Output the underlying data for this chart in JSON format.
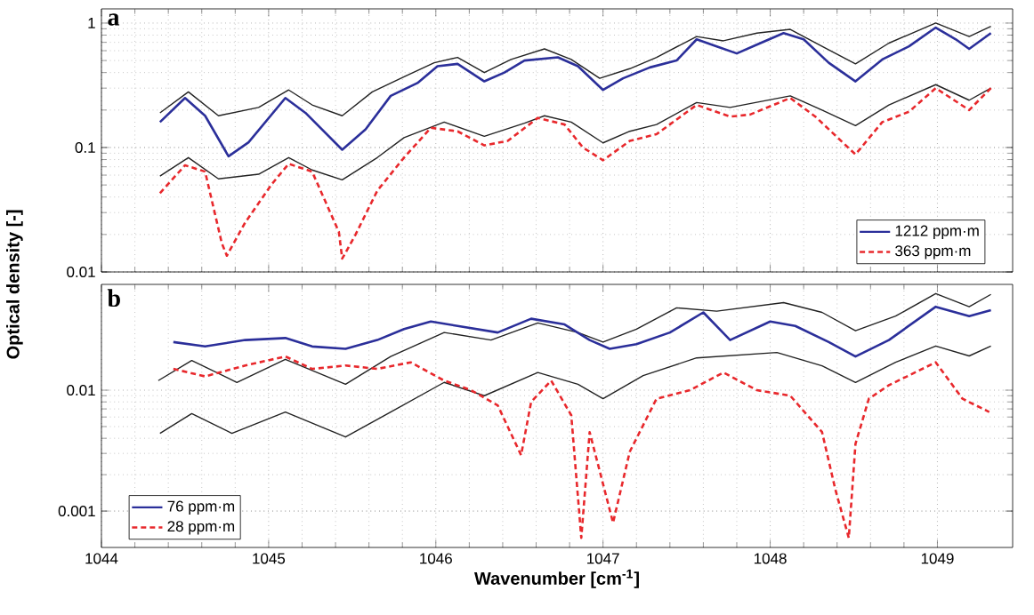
{
  "chart_data": [
    {
      "type": "line",
      "ylabel": "Optical density [-]",
      "annotations": [
        "a"
      ],
      "log": "y",
      "grid": true,
      "legend": "bottom right",
      "tick_labels": "y",
      "xlim": [
        1044,
        1049.45
      ],
      "xticks": [
        1044,
        1045,
        1046,
        1047,
        1048,
        1049
      ],
      "ylim": [
        0.01,
        1.3
      ],
      "yticks": [
        0.01,
        0.1,
        1
      ],
      "series": [
        {
          "color": "#222222",
          "x": [
            1044.35,
            1044.52,
            1044.7,
            1044.94,
            1045.12,
            1045.26,
            1045.44,
            1045.62,
            1045.81,
            1045.99,
            1046.13,
            1046.29,
            1046.45,
            1046.65,
            1046.81,
            1046.98,
            1047.16,
            1047.32,
            1047.56,
            1047.72,
            1047.92,
            1048.12,
            1048.31,
            1048.51,
            1048.71,
            1048.99,
            1049.19,
            1049.32
          ],
          "values": [
            0.19,
            0.28,
            0.18,
            0.21,
            0.29,
            0.22,
            0.18,
            0.28,
            0.37,
            0.48,
            0.53,
            0.4,
            0.51,
            0.62,
            0.51,
            0.36,
            0.43,
            0.53,
            0.78,
            0.72,
            0.83,
            0.89,
            0.65,
            0.47,
            0.69,
            1.0,
            0.78,
            0.94
          ]
        },
        {
          "color": "#222222",
          "x": [
            1044.35,
            1044.52,
            1044.7,
            1044.94,
            1045.12,
            1045.26,
            1045.44,
            1045.65,
            1045.81,
            1046.05,
            1046.29,
            1046.53,
            1046.65,
            1046.81,
            1047.0,
            1047.16,
            1047.32,
            1047.56,
            1047.76,
            1048.12,
            1048.31,
            1048.51,
            1048.71,
            1048.99,
            1049.19,
            1049.32
          ],
          "values": [
            0.059,
            0.083,
            0.056,
            0.061,
            0.083,
            0.066,
            0.055,
            0.083,
            0.12,
            0.16,
            0.123,
            0.157,
            0.18,
            0.16,
            0.109,
            0.135,
            0.153,
            0.23,
            0.21,
            0.26,
            0.2,
            0.15,
            0.22,
            0.32,
            0.24,
            0.3
          ]
        },
        {
          "name": "1212 ppm·m",
          "color": "#2b2f9a",
          "line_style": "solid",
          "x": [
            1044.35,
            1044.5,
            1044.62,
            1044.76,
            1044.88,
            1045.1,
            1045.22,
            1045.44,
            1045.58,
            1045.73,
            1045.89,
            1046.01,
            1046.13,
            1046.29,
            1046.41,
            1046.53,
            1046.73,
            1046.85,
            1047.0,
            1047.12,
            1047.28,
            1047.44,
            1047.56,
            1047.68,
            1047.8,
            1047.92,
            1048.08,
            1048.2,
            1048.35,
            1048.51,
            1048.67,
            1048.83,
            1048.99,
            1049.11,
            1049.19,
            1049.32
          ],
          "values": [
            0.16,
            0.25,
            0.18,
            0.085,
            0.11,
            0.25,
            0.19,
            0.096,
            0.14,
            0.26,
            0.33,
            0.45,
            0.47,
            0.34,
            0.4,
            0.5,
            0.53,
            0.45,
            0.29,
            0.36,
            0.44,
            0.5,
            0.74,
            0.65,
            0.57,
            0.67,
            0.83,
            0.74,
            0.48,
            0.34,
            0.51,
            0.65,
            0.92,
            0.74,
            0.62,
            0.83
          ]
        },
        {
          "name": "363 ppm·m",
          "color": "#e8282c",
          "line_style": "dashed",
          "x": [
            1044.35,
            1044.5,
            1044.62,
            1044.72,
            1044.75,
            1044.86,
            1045.02,
            1045.12,
            1045.26,
            1045.42,
            1045.44,
            1045.52,
            1045.65,
            1045.81,
            1045.97,
            1046.13,
            1046.29,
            1046.43,
            1046.61,
            1046.77,
            1046.88,
            1047.0,
            1047.16,
            1047.32,
            1047.56,
            1047.76,
            1047.88,
            1048.12,
            1048.27,
            1048.51,
            1048.67,
            1048.83,
            1048.99,
            1049.19,
            1049.32
          ],
          "values": [
            0.043,
            0.072,
            0.064,
            0.017,
            0.0135,
            0.025,
            0.051,
            0.074,
            0.064,
            0.021,
            0.0128,
            0.02,
            0.045,
            0.083,
            0.144,
            0.135,
            0.104,
            0.113,
            0.173,
            0.153,
            0.1,
            0.079,
            0.113,
            0.128,
            0.22,
            0.177,
            0.184,
            0.25,
            0.177,
            0.088,
            0.16,
            0.194,
            0.3,
            0.2,
            0.3
          ]
        }
      ]
    },
    {
      "type": "line",
      "xlabel": "Wavenumber [cm$^{-1}$]",
      "annotations": [
        "b"
      ],
      "log": "y",
      "grid": true,
      "legend": "bottom left",
      "xlim": [
        1044,
        1049.45
      ],
      "xticks": [
        1044,
        1045,
        1046,
        1047,
        1048,
        1049
      ],
      "ylim": [
        0.0005,
        0.075
      ],
      "yticks": [
        0.001,
        0.01
      ],
      "series": [
        {
          "color": "#222222",
          "x": [
            1044.34,
            1044.54,
            1044.81,
            1045.1,
            1045.46,
            1045.73,
            1046.05,
            1046.33,
            1046.61,
            1046.85,
            1047.0,
            1047.2,
            1047.44,
            1047.68,
            1048.08,
            1048.31,
            1048.51,
            1048.75,
            1048.99,
            1049.19,
            1049.32
          ],
          "values": [
            0.012,
            0.0176,
            0.0116,
            0.018,
            0.0112,
            0.019,
            0.03,
            0.026,
            0.036,
            0.03,
            0.025,
            0.032,
            0.048,
            0.045,
            0.053,
            0.044,
            0.031,
            0.041,
            0.063,
            0.049,
            0.062
          ]
        },
        {
          "color": "#222222",
          "x": [
            1044.35,
            1044.54,
            1044.78,
            1045.1,
            1045.46,
            1045.73,
            1046.05,
            1046.29,
            1046.61,
            1046.85,
            1047.0,
            1047.24,
            1047.56,
            1048.04,
            1048.31,
            1048.51,
            1048.75,
            1048.99,
            1049.19,
            1049.32
          ],
          "values": [
            0.0044,
            0.0064,
            0.0044,
            0.0066,
            0.0041,
            0.0066,
            0.0116,
            0.009,
            0.014,
            0.0112,
            0.0085,
            0.0132,
            0.0185,
            0.0205,
            0.0159,
            0.0116,
            0.017,
            0.0232,
            0.0192,
            0.0232
          ]
        },
        {
          "name": "76 ppm·m",
          "color": "#2b2f9a",
          "line_style": "solid",
          "x": [
            1044.43,
            1044.62,
            1044.86,
            1045.1,
            1045.26,
            1045.46,
            1045.65,
            1045.81,
            1045.97,
            1046.13,
            1046.37,
            1046.57,
            1046.77,
            1046.92,
            1047.04,
            1047.2,
            1047.4,
            1047.6,
            1047.76,
            1048.0,
            1048.15,
            1048.35,
            1048.51,
            1048.71,
            1048.99,
            1049.19,
            1049.32
          ],
          "values": [
            0.025,
            0.023,
            0.026,
            0.027,
            0.023,
            0.022,
            0.026,
            0.032,
            0.037,
            0.034,
            0.03,
            0.039,
            0.035,
            0.026,
            0.022,
            0.024,
            0.03,
            0.044,
            0.026,
            0.037,
            0.034,
            0.025,
            0.019,
            0.026,
            0.049,
            0.041,
            0.046
          ]
        },
        {
          "name": "28 ppm·m",
          "color": "#e8282c",
          "line_style": "dashed",
          "x": [
            1044.43,
            1044.62,
            1044.86,
            1045.1,
            1045.26,
            1045.46,
            1045.65,
            1045.85,
            1046.05,
            1046.21,
            1046.37,
            1046.51,
            1046.57,
            1046.69,
            1046.81,
            1046.87,
            1046.92,
            1047.06,
            1047.16,
            1047.32,
            1047.52,
            1047.72,
            1047.92,
            1048.12,
            1048.31,
            1048.39,
            1048.47,
            1048.51,
            1048.59,
            1048.71,
            1048.99,
            1049.15,
            1049.31
          ],
          "values": [
            0.015,
            0.013,
            0.016,
            0.019,
            0.015,
            0.016,
            0.015,
            0.017,
            0.012,
            0.01,
            0.0075,
            0.0029,
            0.008,
            0.012,
            0.0062,
            0.0006,
            0.0045,
            0.0008,
            0.0031,
            0.0085,
            0.01,
            0.014,
            0.01,
            0.009,
            0.0045,
            0.0015,
            0.0006,
            0.0036,
            0.0085,
            0.011,
            0.017,
            0.0085,
            0.0066
          ]
        }
      ]
    }
  ]
}
